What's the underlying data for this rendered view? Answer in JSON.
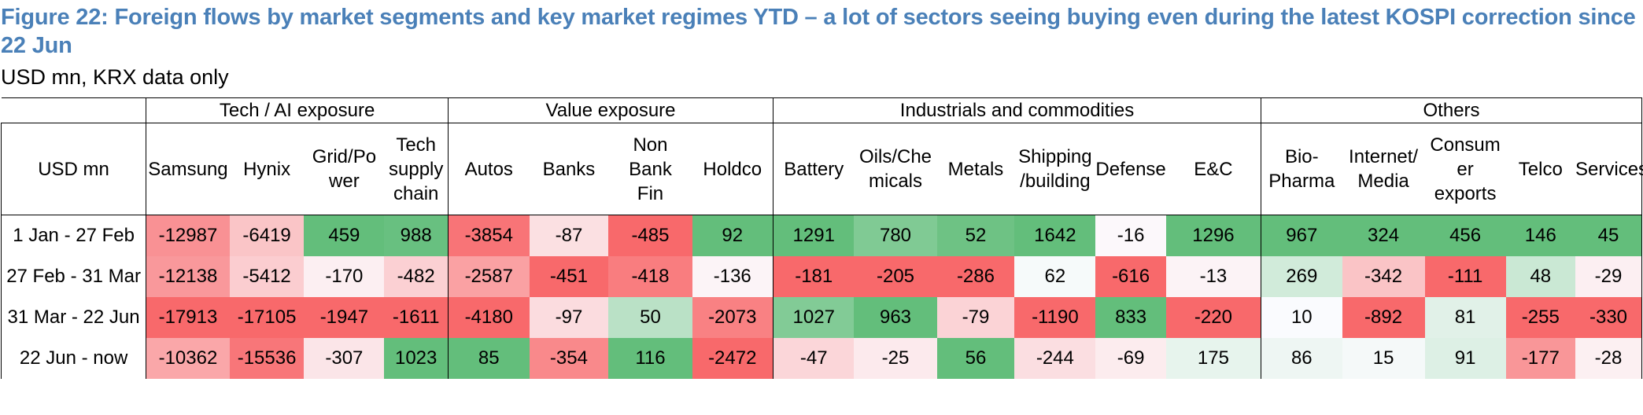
{
  "title": "Figure 22: Foreign flows by market segments and key market regimes YTD – a lot of sectors seeing buying even during the latest KOSPI correction since 22 Jun",
  "subtitle": "USD mn, KRX data only",
  "row_header": "USD mn",
  "groups": [
    {
      "label": "Tech / AI exposure",
      "span": 4
    },
    {
      "label": "Value exposure",
      "span": 4
    },
    {
      "label": "Industrials and commodities",
      "span": 6
    },
    {
      "label": "Others",
      "span": 5
    }
  ],
  "columns": [
    [
      "Samsung"
    ],
    [
      "Hynix"
    ],
    [
      "Grid/Po",
      "wer"
    ],
    [
      "Tech",
      "supply",
      "chain"
    ],
    [
      "Autos"
    ],
    [
      "Banks"
    ],
    [
      "Non",
      "Bank",
      "Fin"
    ],
    [
      "Holdco"
    ],
    [
      "Battery"
    ],
    [
      "Oils/Che",
      "micals"
    ],
    [
      "Metals"
    ],
    [
      "Shipping",
      "/building"
    ],
    [
      "Defense"
    ],
    [
      "E&C"
    ],
    [
      "Bio-",
      "Pharma"
    ],
    [
      "Internet/",
      "Media"
    ],
    [
      "Consum",
      "er",
      "exports"
    ],
    [
      "Telco"
    ],
    [
      "Services"
    ]
  ],
  "rows": [
    {
      "label": "1 Jan - 27 Feb",
      "values": [
        -12987,
        -6419,
        459,
        988,
        -3854,
        -87,
        -485,
        92,
        1291,
        780,
        52,
        1642,
        -16,
        1296,
        967,
        324,
        456,
        146,
        45
      ]
    },
    {
      "label": "27 Feb - 31 Mar",
      "values": [
        -12138,
        -5412,
        -170,
        -482,
        -2587,
        -451,
        -418,
        -136,
        -181,
        -205,
        -286,
        62,
        -616,
        -13,
        269,
        -342,
        -111,
        48,
        -29
      ]
    },
    {
      "label": "31 Mar - 22 Jun",
      "values": [
        -17913,
        -17105,
        -1947,
        -1611,
        -4180,
        -97,
        50,
        -2073,
        1027,
        963,
        -79,
        -1190,
        833,
        -220,
        10,
        -892,
        81,
        -255,
        -330
      ]
    },
    {
      "label": "22 Jun - now",
      "values": [
        -10362,
        -15536,
        -307,
        1023,
        85,
        -354,
        116,
        -2472,
        -47,
        -25,
        56,
        -244,
        -69,
        175,
        86,
        15,
        91,
        -177,
        -28
      ]
    }
  ],
  "colors": {
    "negative": "#f8696b",
    "positive": "#63be7b",
    "neutral": "#fcfcff"
  }
}
